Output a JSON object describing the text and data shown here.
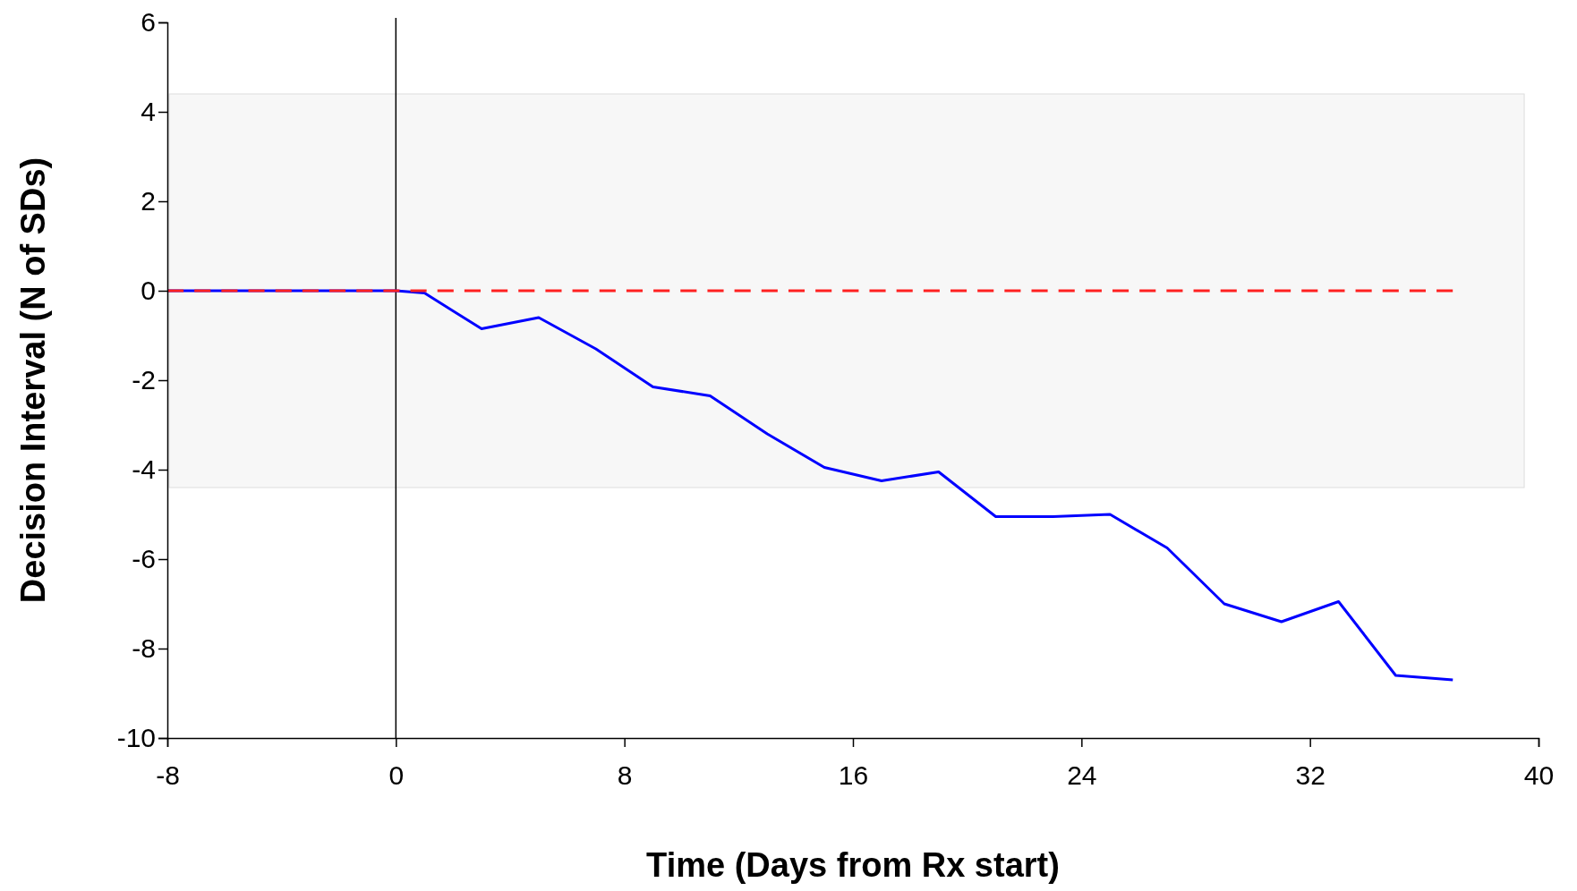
{
  "chart_data": {
    "type": "line",
    "xlabel": "Time (Days from Rx start)",
    "ylabel": "Decision Interval (N of SDs)",
    "xlim": [
      -8,
      40
    ],
    "xticks": [
      -8,
      0,
      8,
      16,
      24,
      32,
      40
    ],
    "ylim": [
      -10,
      6
    ],
    "yticks": [
      -10,
      -8,
      -6,
      -4,
      -2,
      0,
      2,
      4,
      6
    ],
    "grid": false,
    "marker": "none",
    "series": [
      {
        "color": "#0000ff",
        "line_style": "solid",
        "x": [
          -8,
          0,
          1,
          3,
          5,
          7,
          9,
          11,
          13,
          15,
          17,
          19,
          21,
          23,
          25,
          27,
          29,
          31,
          33,
          35,
          37
        ],
        "values": [
          0,
          0,
          -0.05,
          -0.85,
          -0.6,
          -1.3,
          -2.15,
          -2.35,
          -3.2,
          -3.95,
          -4.25,
          -4.05,
          -5.05,
          -5.05,
          -5.0,
          -5.75,
          -7.0,
          -7.4,
          -6.95,
          -8.6,
          -8.7
        ]
      },
      {
        "color": "#ff2020",
        "line_style": "dashed",
        "x": [
          -8,
          37
        ],
        "values": [
          0,
          0
        ]
      }
    ],
    "bands": [
      {
        "axis": "y",
        "from": -4.4,
        "to": 4.4,
        "color": "#f7f7f7"
      }
    ],
    "ref_lines": [
      {
        "axis": "x",
        "value": 0,
        "color": "#000000"
      }
    ]
  }
}
